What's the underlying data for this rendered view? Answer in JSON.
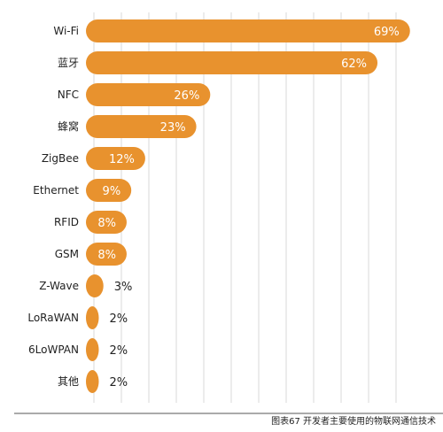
{
  "chart_data": {
    "type": "bar",
    "orientation": "horizontal",
    "categories": [
      "Wi-Fi",
      "蓝牙",
      "NFC",
      "蜂窝",
      "ZigBee",
      "Ethernet",
      "RFID",
      "GSM",
      "Z-Wave",
      "LoRaWAN",
      "6LoWPAN",
      "其他"
    ],
    "values": [
      69,
      62,
      26,
      23,
      12,
      9,
      8,
      8,
      3,
      2,
      2,
      2
    ],
    "value_labels": [
      "69%",
      "62%",
      "26%",
      "23%",
      "12%",
      "9%",
      "8%",
      "8%",
      "3%",
      "2%",
      "2%",
      "2%"
    ],
    "xlim": [
      0,
      70
    ],
    "grid": true,
    "bar_color": "#e8922e"
  },
  "caption": "图表67 开发者主要使用的物联网通信技术"
}
